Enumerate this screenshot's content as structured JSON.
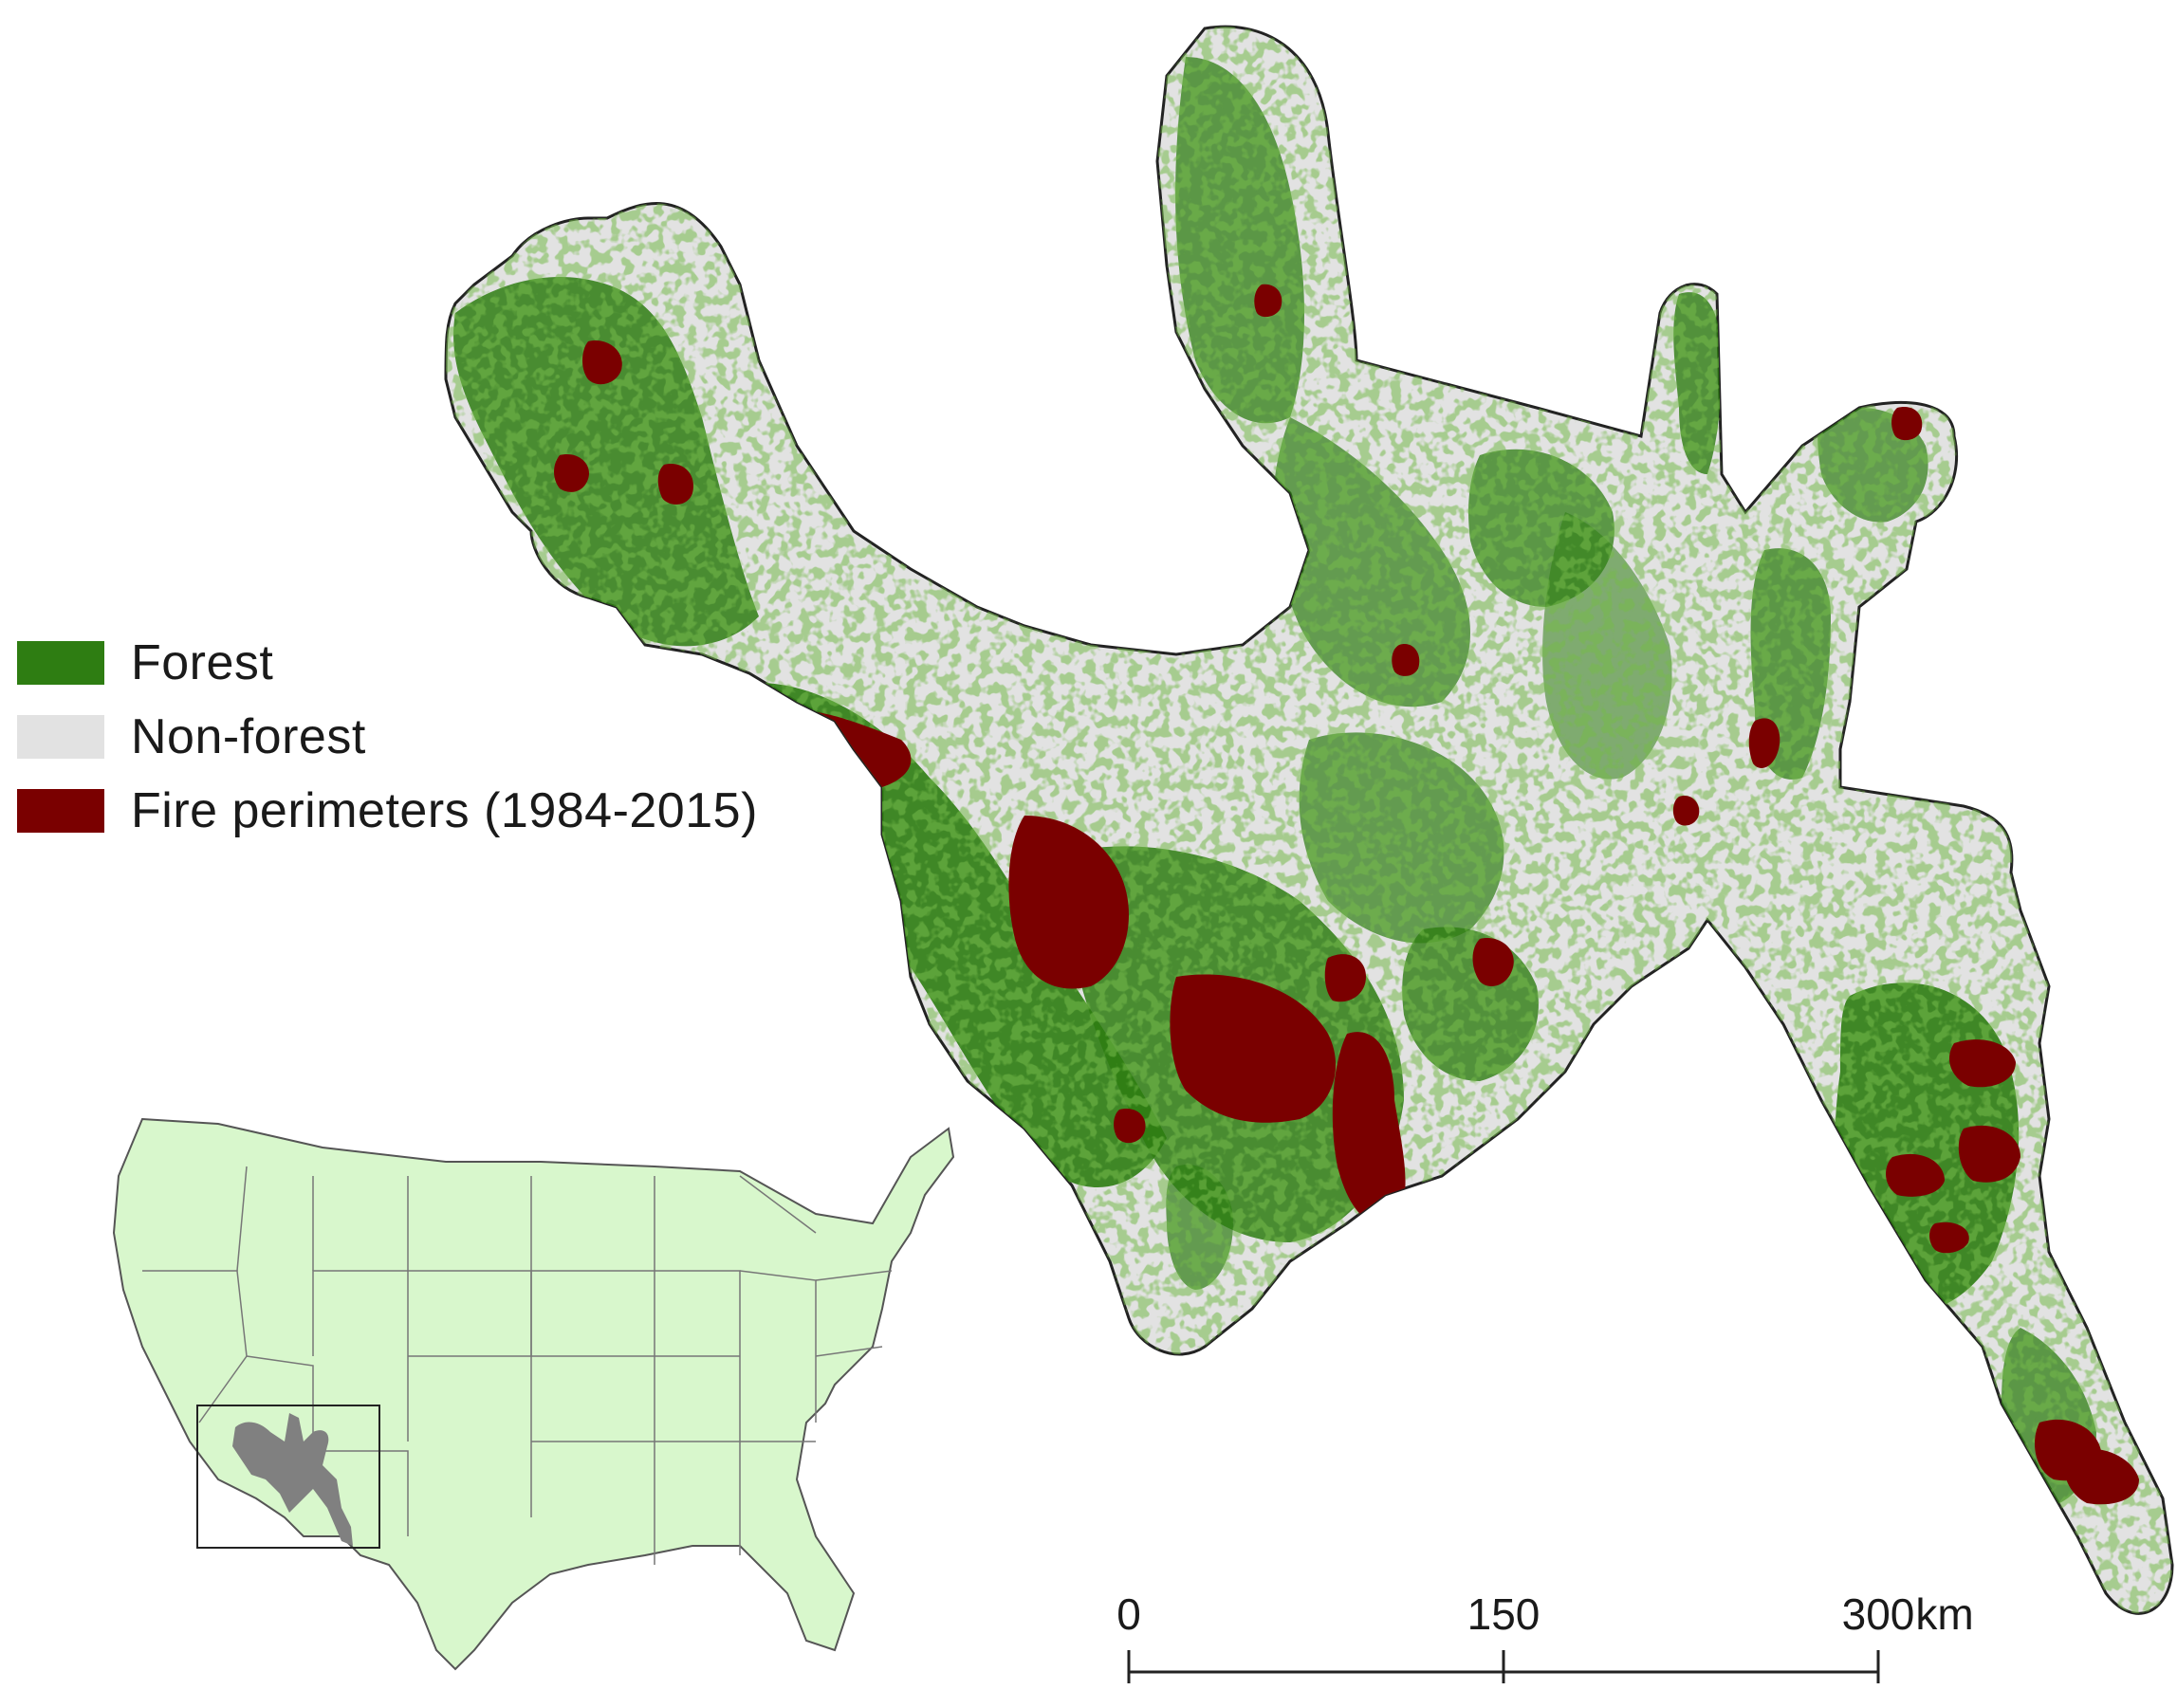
{
  "legend": {
    "items": [
      {
        "label": "Forest",
        "color": "#2e7d12"
      },
      {
        "label": "Non-forest",
        "color": "#e2e2e2"
      },
      {
        "label": "Fire perimeters (1984-2015)",
        "color": "#7a0000"
      }
    ]
  },
  "scale_bar": {
    "ticks": [
      "0",
      "150",
      "300"
    ],
    "unit": "km"
  },
  "inset": {
    "land_color": "#d8f7cc",
    "study_area_color": "#808080"
  },
  "colors": {
    "outline": "#222222"
  }
}
